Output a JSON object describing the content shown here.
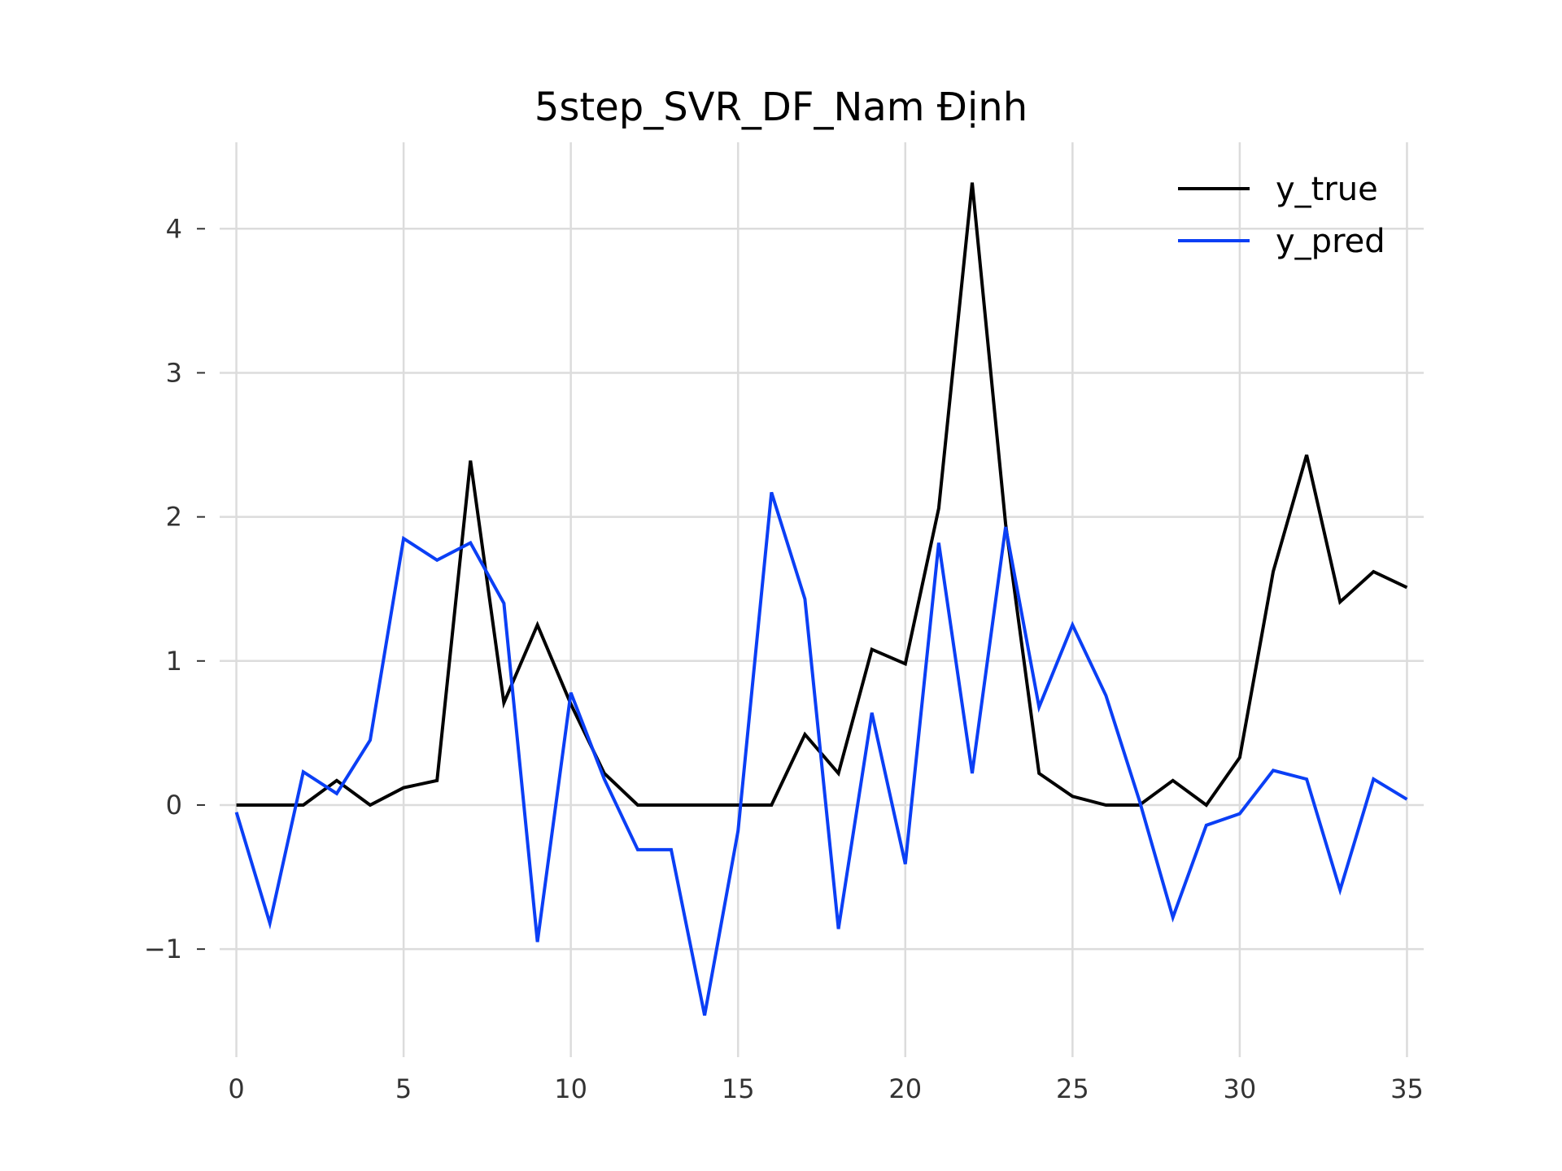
{
  "chart_data": {
    "type": "line",
    "title": "5step_SVR_DF_Nam Định",
    "xlabel": "",
    "ylabel": "",
    "xlim": [
      -0.5,
      35.5
    ],
    "ylim": [
      -1.75,
      4.6
    ],
    "xticks": [
      0,
      5,
      10,
      15,
      20,
      25,
      30,
      35
    ],
    "yticks": [
      -1,
      0,
      1,
      2,
      3,
      4
    ],
    "ytick_labels": [
      "−1",
      "0",
      "1",
      "2",
      "3",
      "4"
    ],
    "grid": true,
    "legend_position": "top-right",
    "x": [
      0,
      1,
      2,
      3,
      4,
      5,
      6,
      7,
      8,
      9,
      10,
      11,
      12,
      13,
      14,
      15,
      16,
      17,
      18,
      19,
      20,
      21,
      22,
      23,
      24,
      25,
      26,
      27,
      28,
      29,
      30,
      31,
      32,
      33,
      34,
      35
    ],
    "series": [
      {
        "name": "y_true",
        "color": "#000000",
        "values": [
          0,
          0,
          0,
          0.17,
          0,
          0.12,
          0.17,
          2.39,
          0.71,
          1.25,
          0.7,
          0.22,
          0,
          0,
          0,
          0,
          0,
          0.49,
          0.22,
          1.08,
          0.98,
          2.06,
          4.32,
          1.95,
          0.22,
          0.06,
          0,
          0,
          0.17,
          0,
          0.33,
          1.62,
          2.43,
          1.41,
          1.62,
          1.51
        ]
      },
      {
        "name": "y_pred",
        "color": "#0b3ff5",
        "values": [
          -0.05,
          -0.82,
          0.23,
          0.08,
          0.45,
          1.85,
          1.7,
          1.82,
          1.4,
          -0.95,
          0.78,
          0.18,
          -0.31,
          -0.31,
          -1.46,
          -0.18,
          2.17,
          1.43,
          -0.86,
          0.64,
          -0.41,
          1.82,
          0.22,
          1.93,
          0.68,
          1.25,
          0.76,
          0.03,
          -0.78,
          -0.14,
          -0.06,
          0.24,
          0.18,
          -0.59,
          0.18,
          0.04
        ]
      }
    ]
  }
}
